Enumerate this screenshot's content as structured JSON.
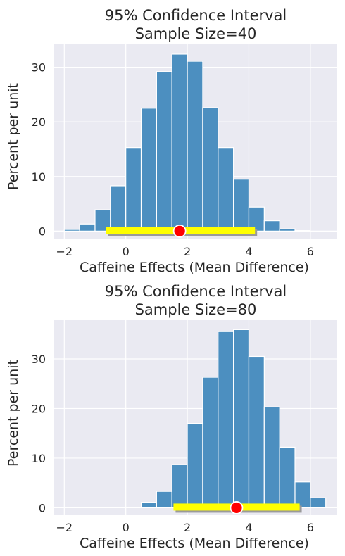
{
  "chart_data": [
    {
      "type": "bar",
      "title": "95% Confidence Interval",
      "subtitle": "Sample Size=40",
      "xlabel": "Caffeine Effects (Mean Difference)",
      "ylabel": "Percent per unit",
      "xlim": [
        -2.35,
        6.85
      ],
      "ylim": [
        -1.5,
        34.2
      ],
      "xticks": [
        -2,
        0,
        2,
        4,
        6
      ],
      "yticks": [
        0,
        10,
        20,
        30
      ],
      "grid": true,
      "bin_edges": [
        -2.0,
        -1.5,
        -1.0,
        -0.5,
        0.0,
        0.5,
        1.0,
        1.5,
        2.0,
        2.5,
        3.0,
        3.5,
        4.0,
        4.5,
        5.0,
        5.5,
        6.0,
        6.5
      ],
      "values": [
        0.3,
        1.3,
        3.9,
        8.3,
        15.3,
        22.5,
        29.2,
        32.4,
        31.1,
        22.6,
        15.3,
        9.5,
        4.4,
        1.9,
        0.4,
        0.1,
        0.0
      ],
      "interval": [
        -0.65,
        4.2
      ],
      "point_estimate": 1.75,
      "colors": {
        "bars": "#4c8fc0",
        "interval": "#ffff00",
        "shadow": "#9a9a9a",
        "point": "#ff0000",
        "background": "#eaeaf2",
        "grid": "#ffffff"
      }
    },
    {
      "type": "bar",
      "title": "95% Confidence Interval",
      "subtitle": "Sample Size=80",
      "xlabel": "Caffeine Effects (Mean Difference)",
      "ylabel": "Percent per unit",
      "xlim": [
        -2.35,
        6.85
      ],
      "ylim": [
        -1.5,
        37.8
      ],
      "xticks": [
        -2,
        0,
        2,
        4,
        6
      ],
      "yticks": [
        0,
        10,
        20,
        30
      ],
      "grid": true,
      "bin_edges": [
        0.5,
        1.0,
        1.5,
        2.0,
        2.5,
        3.0,
        3.5,
        4.0,
        4.5,
        5.0,
        5.5,
        6.0,
        6.5
      ],
      "values": [
        1.1,
        3.3,
        8.7,
        17.0,
        26.3,
        35.5,
        35.9,
        30.5,
        20.3,
        12.2,
        5.2,
        2.0
      ],
      "interval": [
        1.55,
        5.65
      ],
      "point_estimate": 3.6,
      "colors": {
        "bars": "#4c8fc0",
        "interval": "#ffff00",
        "shadow": "#9a9a9a",
        "point": "#ff0000",
        "background": "#eaeaf2",
        "grid": "#ffffff"
      }
    }
  ]
}
